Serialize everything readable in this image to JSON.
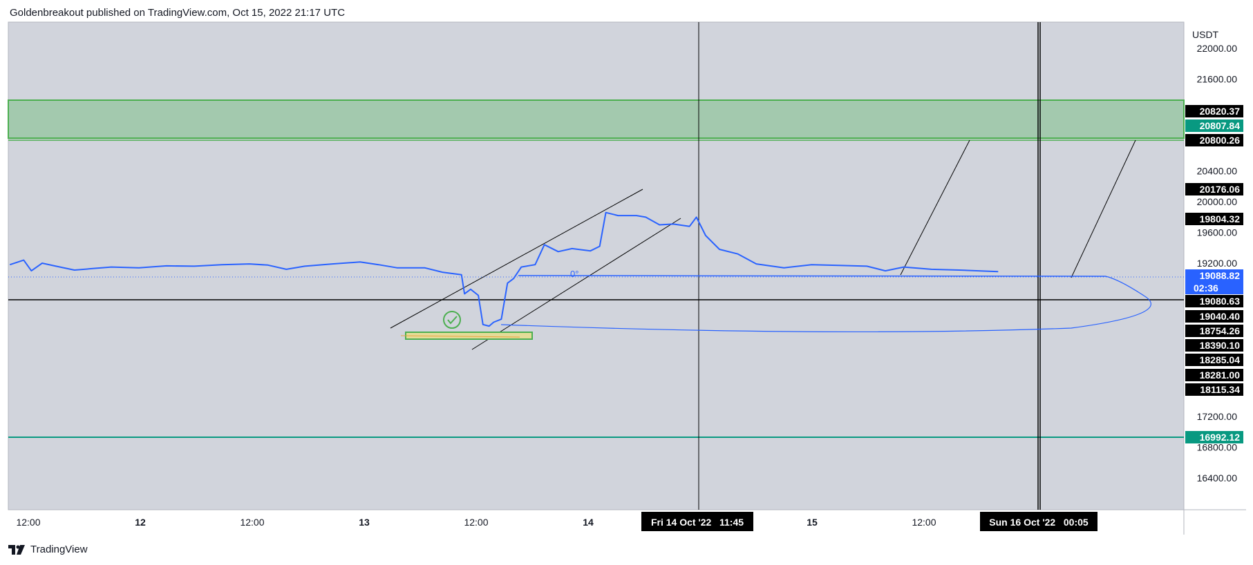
{
  "header": {
    "title": "Goldenbreakout published on TradingView.com, Oct 15, 2022 21:17 UTC"
  },
  "footer": {
    "brand": "TradingView"
  },
  "colors": {
    "background": "#d1d4dc",
    "price_line": "#2962ff",
    "zone_fill": "#a3c9ae",
    "zone_border": "#4caf50",
    "support_line": "#089981",
    "label_black": "#000000",
    "label_teal": "#089981",
    "label_blue": "#2962ff"
  },
  "chart_data": {
    "type": "line",
    "symbol_currency": "USDT",
    "y_ticks": [
      "22000.00",
      "21600.00",
      "20400.00",
      "20000.00",
      "19600.00",
      "19200.00",
      "17200.00",
      "16800.00",
      "16400.00"
    ],
    "x_ticks": [
      "12:00",
      "12",
      "12:00",
      "13",
      "12:00",
      "14",
      "15",
      "12:00",
      "12:00"
    ],
    "price_labels": [
      {
        "value": "20820.37",
        "style": "black"
      },
      {
        "value": "20807.84",
        "style": "teal"
      },
      {
        "value": "20800.26",
        "style": "black"
      },
      {
        "value": "20176.06",
        "style": "black"
      },
      {
        "value": "19804.32",
        "style": "black"
      },
      {
        "value": "19088.82",
        "style": "blue",
        "countdown": "02:36"
      },
      {
        "value": "19080.63",
        "style": "black"
      },
      {
        "value": "19040.40",
        "style": "black"
      },
      {
        "value": "18754.26",
        "style": "black"
      },
      {
        "value": "18390.10",
        "style": "black"
      },
      {
        "value": "18285.04",
        "style": "black"
      },
      {
        "value": "18281.00",
        "style": "black"
      },
      {
        "value": "18115.34",
        "style": "black"
      },
      {
        "value": "16992.12",
        "style": "teal"
      }
    ],
    "time_labels": [
      "Fri 14 Oct '22   11:45",
      "Sun 16 Oct '22   00:05"
    ],
    "angle_label": "0°",
    "series": [
      {
        "points": [
          [
            "Oct 11 10:00",
            19180
          ],
          [
            "Oct 11 11:30",
            19240
          ],
          [
            "Oct 11 12:20",
            19100
          ],
          [
            "Oct 11 13:30",
            19200
          ],
          [
            "Oct 11 15:00",
            19160
          ],
          [
            "Oct 11 17:00",
            19110
          ],
          [
            "Oct 11 19:00",
            19130
          ],
          [
            "Oct 11 21:00",
            19150
          ],
          [
            "Oct 12 00:00",
            19140
          ],
          [
            "Oct 12 03:00",
            19165
          ],
          [
            "Oct 12 06:00",
            19160
          ],
          [
            "Oct 12 09:00",
            19180
          ],
          [
            "Oct 12 12:00",
            19190
          ],
          [
            "Oct 12 14:00",
            19175
          ],
          [
            "Oct 12 16:00",
            19120
          ],
          [
            "Oct 12 18:00",
            19160
          ],
          [
            "Oct 12 21:00",
            19190
          ],
          [
            "Oct 13 00:00",
            19215
          ],
          [
            "Oct 13 02:00",
            19180
          ],
          [
            "Oct 13 04:00",
            19140
          ],
          [
            "Oct 13 07:00",
            19140
          ],
          [
            "Oct 13 09:00",
            19080
          ],
          [
            "Oct 13 11:00",
            19050
          ],
          [
            "Oct 13 11:20",
            18800
          ],
          [
            "Oct 13 12:00",
            18860
          ],
          [
            "Oct 13 12:50",
            18780
          ],
          [
            "Oct 13 13:20",
            18400
          ],
          [
            "Oct 13 14:00",
            18380
          ],
          [
            "Oct 13 14:30",
            18430
          ],
          [
            "Oct 13 15:20",
            18470
          ],
          [
            "Oct 13 16:00",
            18940
          ],
          [
            "Oct 13 16:40",
            19000
          ],
          [
            "Oct 13 17:30",
            19150
          ],
          [
            "Oct 13 19:00",
            19180
          ],
          [
            "Oct 13 20:00",
            19440
          ],
          [
            "Oct 13 21:30",
            19350
          ],
          [
            "Oct 13 23:00",
            19390
          ],
          [
            "Oct 14 01:00",
            19360
          ],
          [
            "Oct 14 02:00",
            19420
          ],
          [
            "Oct 14 02:40",
            19860
          ],
          [
            "Oct 14 04:00",
            19820
          ],
          [
            "Oct 14 06:00",
            19820
          ],
          [
            "Oct 14 07:00",
            19800
          ],
          [
            "Oct 14 08:30",
            19700
          ],
          [
            "Oct 14 10:00",
            19710
          ],
          [
            "Oct 14 11:45",
            19680
          ],
          [
            "Oct 14 12:30",
            19800
          ],
          [
            "Oct 14 13:30",
            19560
          ],
          [
            "Oct 14 15:00",
            19380
          ],
          [
            "Oct 14 17:00",
            19320
          ],
          [
            "Oct 14 19:00",
            19190
          ],
          [
            "Oct 14 22:00",
            19140
          ],
          [
            "Oct 15 01:00",
            19180
          ],
          [
            "Oct 15 04:00",
            19170
          ],
          [
            "Oct 15 07:00",
            19160
          ],
          [
            "Oct 15 09:00",
            19100
          ],
          [
            "Oct 15 11:00",
            19150
          ],
          [
            "Oct 15 14:00",
            19120
          ],
          [
            "Oct 15 17:00",
            19110
          ],
          [
            "Oct 15 21:15",
            19088.82
          ]
        ]
      }
    ]
  }
}
